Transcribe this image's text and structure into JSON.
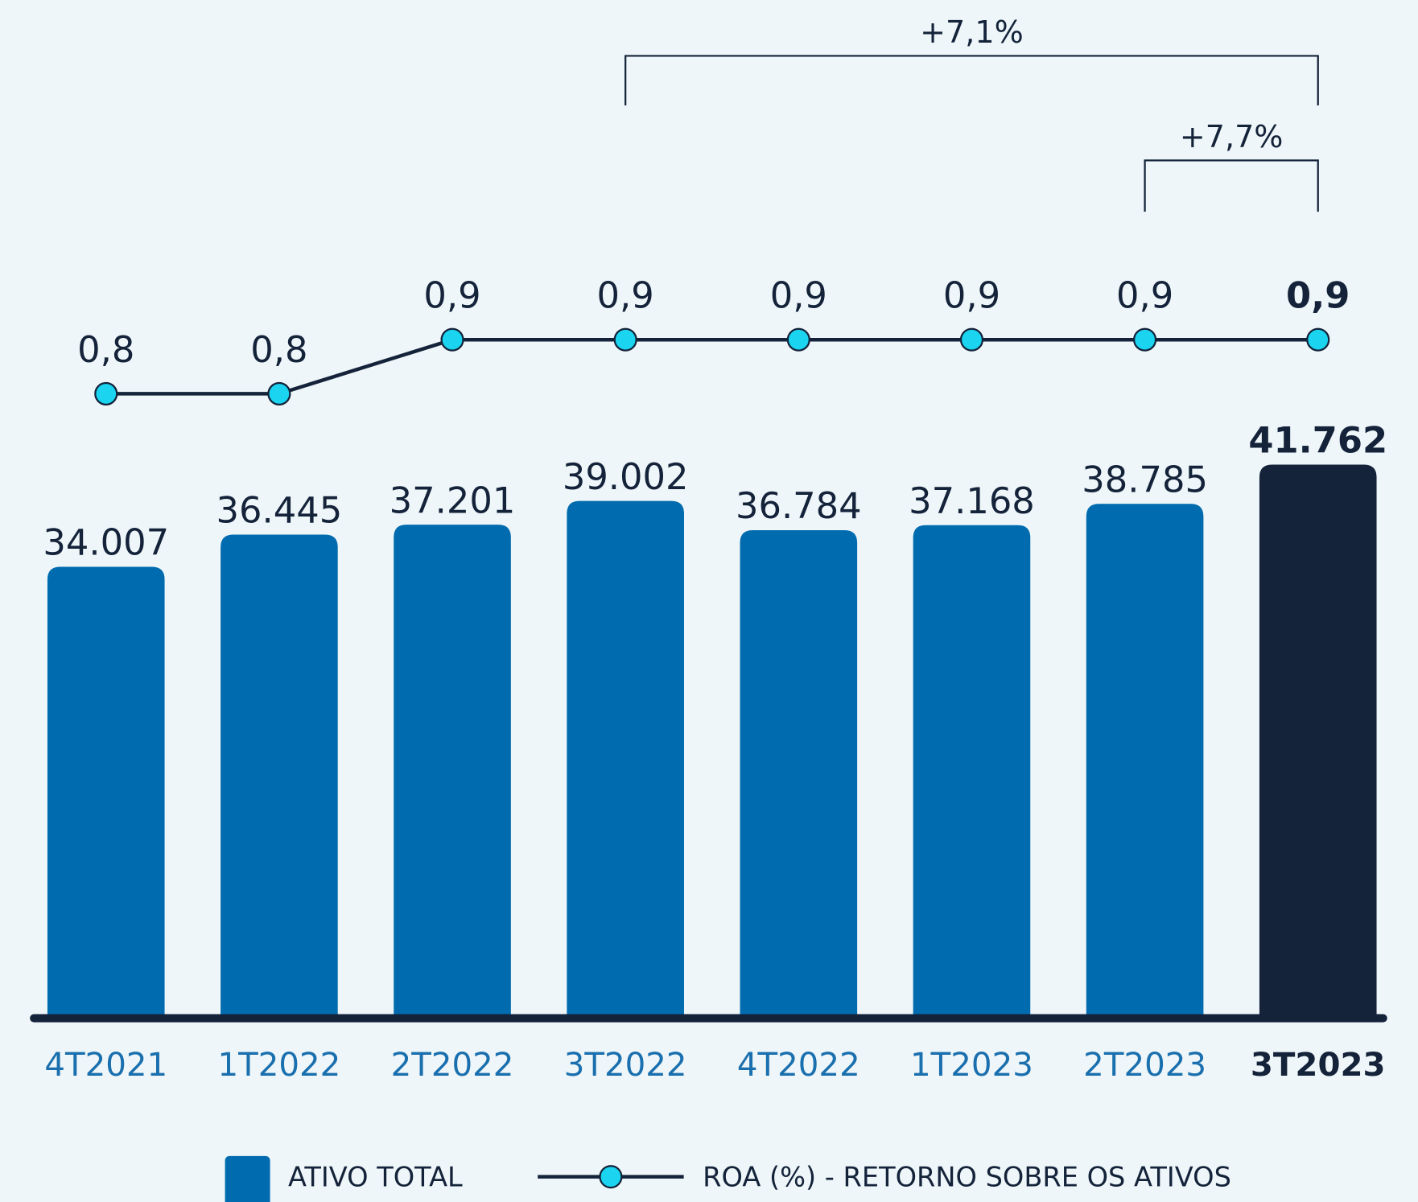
{
  "chart_data": {
    "type": "combo",
    "categories": [
      "4T2021",
      "1T2022",
      "2T2022",
      "3T2022",
      "4T2022",
      "1T2023",
      "2T2023",
      "3T2023"
    ],
    "series": [
      {
        "name": "ATIVO TOTAL",
        "type": "bar",
        "color": "#006bae",
        "highlight_color": "#14233a",
        "values": [
          34007,
          36445,
          37201,
          39002,
          36784,
          37168,
          38785,
          41762
        ],
        "value_labels": [
          "34.007",
          "36.445",
          "37.201",
          "39.002",
          "36.784",
          "37.168",
          "38.785",
          "41.762"
        ]
      },
      {
        "name": "ROA (%) - RETORNO SOBRE OS ATIVOS",
        "type": "line",
        "color": "#14233a",
        "marker_color": "#1ad4f0",
        "values": [
          0.8,
          0.8,
          0.9,
          0.9,
          0.9,
          0.9,
          0.9,
          0.9
        ],
        "value_labels": [
          "0,8",
          "0,8",
          "0,9",
          "0,9",
          "0,9",
          "0,9",
          "0,9",
          "0,9"
        ]
      }
    ],
    "annotations": [
      {
        "text": "+7,1%",
        "from": "3T2022",
        "to": "3T2023"
      },
      {
        "text": "+7,7%",
        "from": "2T2023",
        "to": "3T2023"
      }
    ]
  }
}
